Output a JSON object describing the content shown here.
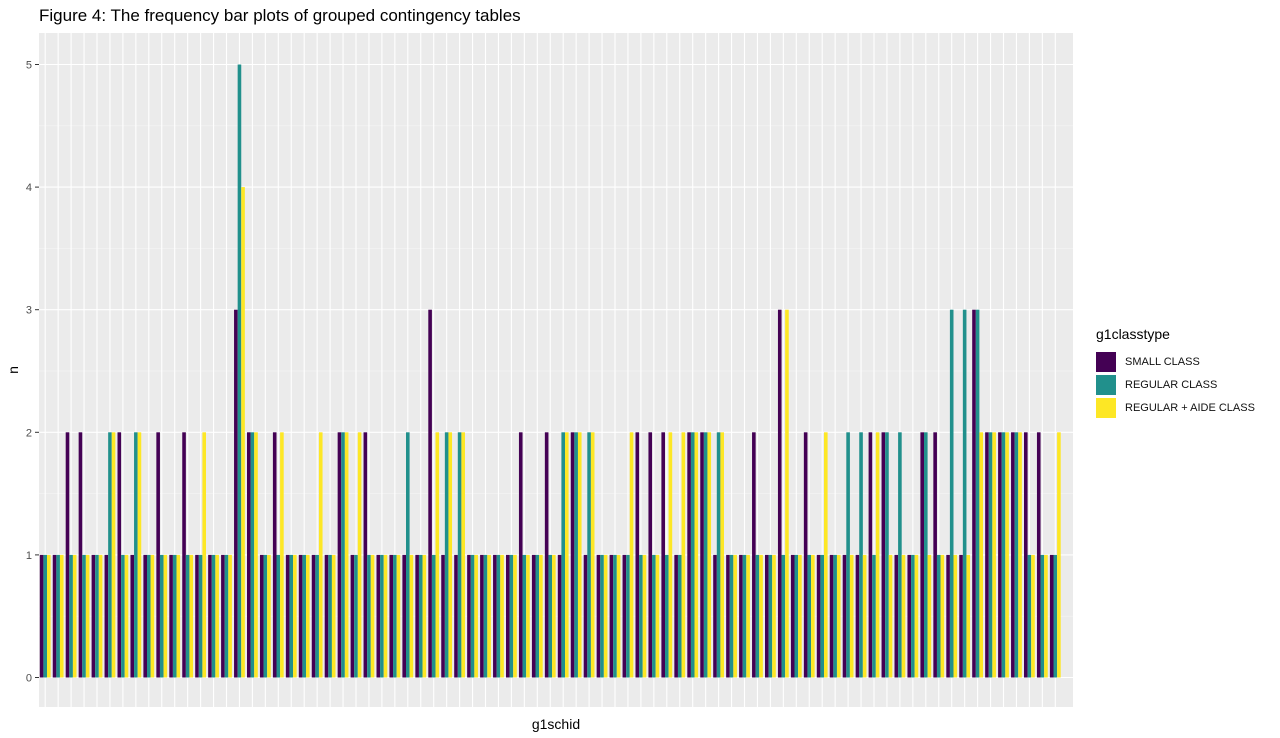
{
  "chart_data": {
    "type": "bar",
    "title": "Figure 4: The frequency bar plots of grouped contingency tables",
    "xlabel": "g1schid",
    "ylabel": "n",
    "ylim": [
      0,
      5.2
    ],
    "yticks": [
      0,
      1,
      2,
      3,
      4,
      5
    ],
    "grid": true,
    "legend_title": "g1classtype",
    "legend_position": "right",
    "series": [
      {
        "name": "SMALL CLASS",
        "color": "#440154",
        "values": [
          1,
          1,
          2,
          2,
          1,
          1,
          2,
          1,
          1,
          2,
          1,
          2,
          1,
          1,
          1,
          3,
          2,
          1,
          2,
          1,
          1,
          1,
          1,
          2,
          1,
          2,
          1,
          1,
          1,
          1,
          3,
          1,
          1,
          1,
          1,
          1,
          1,
          2,
          1,
          2,
          1,
          2,
          1,
          1,
          1,
          1,
          2,
          2,
          2,
          1,
          2,
          2,
          1,
          1,
          1,
          2,
          1,
          3,
          1,
          2,
          1,
          1,
          1,
          1,
          2,
          2,
          1,
          1,
          2,
          2,
          1,
          1,
          3,
          2,
          2,
          2,
          2,
          2,
          1
        ]
      },
      {
        "name": "REGULAR CLASS",
        "color": "#21908C",
        "values": [
          1,
          1,
          1,
          1,
          1,
          2,
          1,
          2,
          1,
          1,
          1,
          1,
          1,
          1,
          1,
          5,
          2,
          1,
          1,
          1,
          1,
          1,
          1,
          2,
          1,
          1,
          1,
          1,
          2,
          1,
          1,
          2,
          2,
          1,
          1,
          1,
          1,
          1,
          1,
          1,
          2,
          2,
          2,
          1,
          1,
          1,
          1,
          1,
          1,
          1,
          2,
          2,
          2,
          1,
          1,
          1,
          1,
          1,
          1,
          1,
          1,
          1,
          2,
          2,
          1,
          2,
          2,
          1,
          2,
          1,
          3,
          3,
          3,
          2,
          2,
          2,
          1,
          1,
          1
        ]
      },
      {
        "name": "REGULAR + AIDE CLASS",
        "color": "#FDE725",
        "values": [
          1,
          1,
          1,
          1,
          1,
          2,
          1,
          2,
          1,
          1,
          1,
          1,
          2,
          1,
          1,
          4,
          2,
          1,
          2,
          1,
          1,
          2,
          1,
          2,
          2,
          1,
          1,
          1,
          1,
          1,
          2,
          2,
          2,
          1,
          1,
          1,
          1,
          1,
          1,
          1,
          2,
          2,
          2,
          1,
          1,
          2,
          1,
          1,
          2,
          2,
          2,
          2,
          2,
          1,
          1,
          1,
          1,
          3,
          1,
          1,
          2,
          1,
          1,
          1,
          2,
          1,
          1,
          1,
          1,
          1,
          1,
          1,
          2,
          2,
          2,
          2,
          1,
          1,
          2
        ]
      }
    ]
  }
}
